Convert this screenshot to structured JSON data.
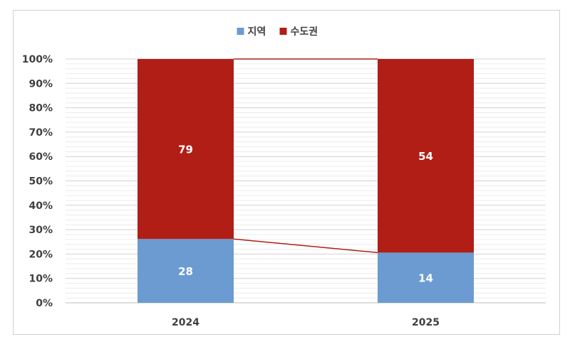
{
  "chart_data": {
    "type": "bar",
    "stacked": "percent",
    "categories": [
      "2024",
      "2025"
    ],
    "series": [
      {
        "name": "지역",
        "values": [
          28,
          14
        ],
        "color": "#6b9bd1"
      },
      {
        "name": "수도권",
        "values": [
          79,
          54
        ],
        "color": "#b01e16"
      }
    ],
    "y_ticks": [
      "0%",
      "10%",
      "20%",
      "30%",
      "40%",
      "50%",
      "60%",
      "70%",
      "80%",
      "90%",
      "100%"
    ],
    "ylim": [
      0,
      100
    ],
    "legend": "top-center",
    "grid": true,
    "series_lines": true
  }
}
